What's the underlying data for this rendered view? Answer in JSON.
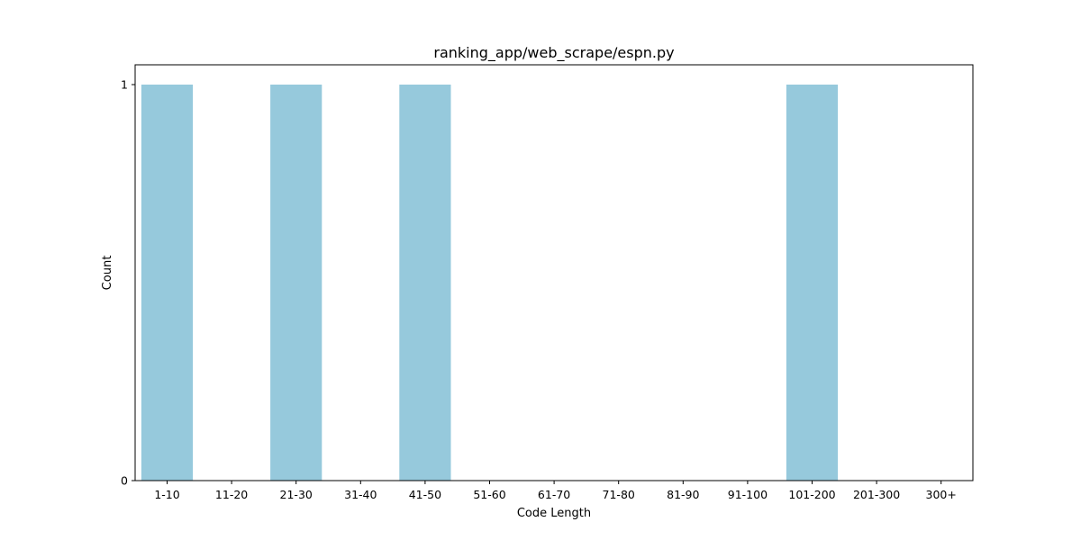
{
  "chart_data": {
    "type": "bar",
    "title": "ranking_app/web_scrape/espn.py",
    "xlabel": "Code Length",
    "ylabel": "Count",
    "categories": [
      "1-10",
      "11-20",
      "21-30",
      "31-40",
      "41-50",
      "51-60",
      "61-70",
      "71-80",
      "81-90",
      "91-100",
      "101-200",
      "201-300",
      "300+"
    ],
    "values": [
      1,
      0,
      1,
      0,
      1,
      0,
      0,
      0,
      0,
      0,
      1,
      0,
      0
    ],
    "ylim": [
      0,
      1
    ],
    "yticks": [
      0,
      1
    ],
    "bar_color": "#96c9dc",
    "grid": false,
    "legend": "none"
  }
}
